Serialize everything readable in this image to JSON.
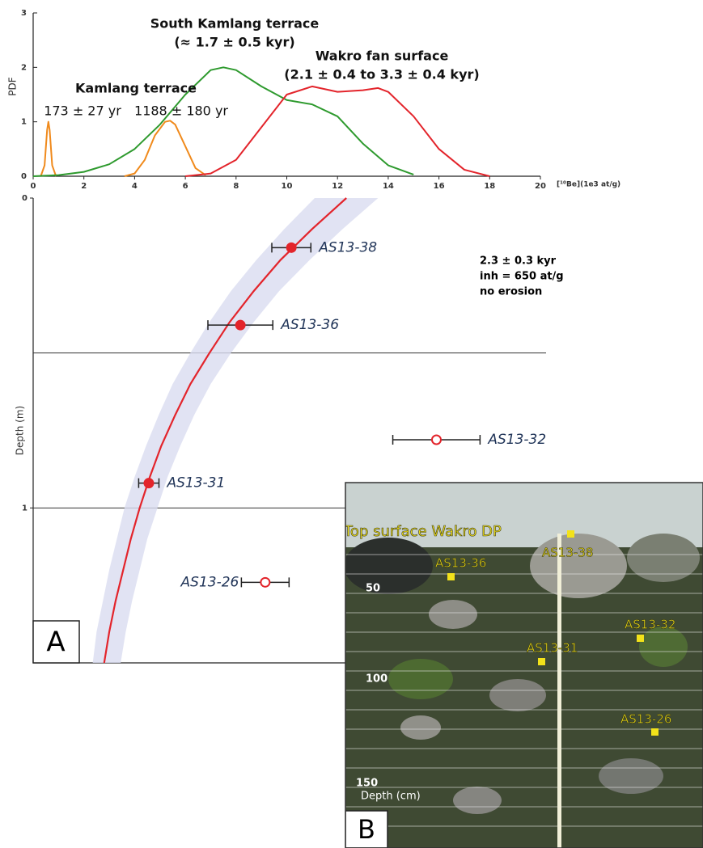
{
  "chart_data": [
    {
      "type": "line",
      "ylabel": "PDF",
      "xlabel": "[¹⁰Be](1e3 at/g)",
      "xlim": [
        0,
        20
      ],
      "ylim": [
        0,
        3
      ],
      "xticks": [
        0,
        2,
        4,
        6,
        8,
        10,
        12,
        14,
        16,
        18,
        20
      ],
      "yticks": [
        0,
        1,
        2,
        3
      ],
      "series": [
        {
          "color": "#f08a1c",
          "x": [
            0.3,
            0.45,
            0.55,
            0.6,
            0.65,
            0.75,
            0.9
          ],
          "values": [
            0,
            0.2,
            0.85,
            1.0,
            0.85,
            0.2,
            0
          ]
        },
        {
          "color": "#f08a1c",
          "x": [
            3.6,
            4.0,
            4.4,
            4.8,
            5.2,
            5.4,
            5.6,
            6.0,
            6.4,
            6.8
          ],
          "values": [
            0,
            0.05,
            0.3,
            0.75,
            1.0,
            1.02,
            0.95,
            0.55,
            0.15,
            0.02
          ]
        },
        {
          "color": "#2e9a2e",
          "x": [
            0,
            1,
            2,
            3,
            4,
            5,
            6,
            7,
            7.5,
            8,
            9,
            10,
            11,
            12,
            13,
            14,
            15
          ],
          "values": [
            0,
            0.02,
            0.08,
            0.22,
            0.5,
            0.95,
            1.5,
            1.95,
            2.0,
            1.95,
            1.65,
            1.4,
            1.32,
            1.1,
            0.6,
            0.2,
            0.03
          ]
        },
        {
          "color": "#e3242b",
          "x": [
            6,
            7,
            8,
            9,
            10,
            11,
            12,
            13,
            13.6,
            14,
            15,
            16,
            17,
            18
          ],
          "values": [
            0,
            0.05,
            0.3,
            0.9,
            1.5,
            1.65,
            1.55,
            1.58,
            1.62,
            1.55,
            1.1,
            0.5,
            0.12,
            0
          ]
        }
      ],
      "annotations": [
        "South Kamlang terrace",
        "(≈ 1.7 ± 0.5 kyr)",
        "Wakro fan surface",
        "(2.1 ± 0.4 to 3.3 ± 0.4 kyr)",
        "Kamlang terrace",
        "173 ± 27 yr",
        "1188 ± 180 yr"
      ]
    },
    {
      "type": "scatter",
      "ylabel": "Depth (m)",
      "panel": "A",
      "xlim": [
        0,
        20
      ],
      "ylim": [
        0,
        1.5
      ],
      "yticks": [
        0,
        1
      ],
      "hlines": [
        0.5,
        1
      ],
      "model": {
        "color": "#e3242b",
        "band_color": "#d9dcf0",
        "depth": [
          0,
          0.1,
          0.2,
          0.3,
          0.4,
          0.5,
          0.6,
          0.7,
          0.8,
          0.9,
          1.0,
          1.1,
          1.2,
          1.3,
          1.4,
          1.5
        ],
        "values": [
          12.35,
          11.0,
          9.75,
          8.7,
          7.75,
          6.95,
          6.2,
          5.6,
          5.05,
          4.6,
          4.2,
          3.85,
          3.55,
          3.25,
          3.0,
          2.8
        ],
        "low": [
          11.1,
          9.9,
          8.8,
          7.8,
          6.95,
          6.2,
          5.5,
          4.95,
          4.45,
          4.0,
          3.6,
          3.3,
          3.0,
          2.75,
          2.5,
          2.35
        ],
        "high": [
          13.6,
          12.2,
          10.9,
          9.7,
          8.7,
          7.8,
          7.0,
          6.35,
          5.8,
          5.3,
          4.9,
          4.5,
          4.2,
          3.9,
          3.65,
          3.45
        ]
      },
      "series": [
        {
          "color": "#e3242b",
          "filled": true,
          "labels": [
            "AS13-38",
            "AS13-36",
            "AS13-31"
          ],
          "x": [
            10.18,
            8.17,
            4.56
          ],
          "values": [
            0.16,
            0.41,
            0.92
          ],
          "xerr": [
            0.77,
            1.28,
            0.4
          ]
        },
        {
          "color": "#e3242b",
          "filled": false,
          "labels": [
            "AS13-32",
            "AS13-26"
          ],
          "x": [
            15.9,
            9.15
          ],
          "values": [
            0.78,
            1.24
          ],
          "xerr": [
            1.72,
            0.94
          ]
        }
      ],
      "annotations": [
        "2.3 ± 0.3 kyr",
        "inh = 650 at/g",
        "no erosion"
      ]
    }
  ],
  "photo": {
    "title": "Top surface Wakro DP",
    "samples": [
      "AS13-38",
      "AS13-36",
      "AS13-32",
      "AS13-31",
      "AS13-26"
    ],
    "depth_marks": [
      "50",
      "100",
      "150"
    ],
    "depth_label": "Depth (cm)",
    "panel": "B"
  }
}
